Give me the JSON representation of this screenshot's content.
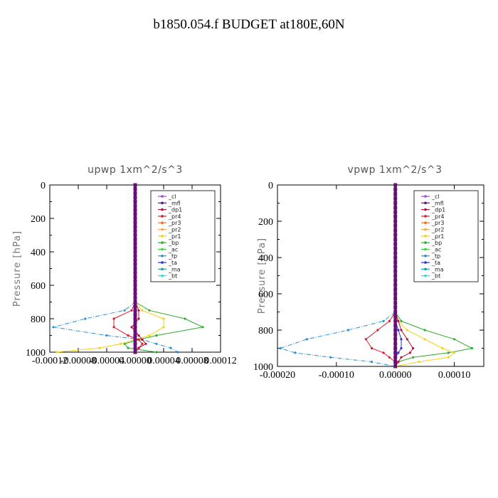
{
  "title": "b1850.054.f  BUDGET at180E,60N",
  "legend_labels": [
    "_cl",
    "_mfl",
    "_dp1",
    "_pr4",
    "_pr3",
    "_pr2",
    "_pr1",
    "_bp",
    "_ac",
    "_tp",
    "_ta",
    "_ma",
    "_bt"
  ],
  "colors": {
    "_cl": "#9b4fc7",
    "_mfl": "#6a0d7a",
    "_dp1": "#b3123a",
    "_pr4": "#d91c2b",
    "_pr3": "#ff6a1a",
    "_pr2": "#ffa64d",
    "_pr1": "#f2d316",
    "_bp": "#2eaa2e",
    "_ac": "#40d040",
    "_tp": "#2b8fd6",
    "_ta": "#2b2bd0",
    "_ma": "#1aa0a0",
    "_bt": "#20e0e0"
  },
  "chart_data": [
    {
      "type": "line",
      "title": "upwp   1xm^2/s^3",
      "ylabel": "Pressure  [hPa]",
      "xlim": [
        -0.00012,
        0.00012
      ],
      "ylim": [
        1000,
        0
      ],
      "xticks": [
        "-0.00012",
        "-0.00008",
        "-0.00004",
        "0.00000",
        "0.00004",
        "0.00008",
        "0.00012"
      ],
      "yticks": [
        "0",
        "200",
        "400",
        "600",
        "800",
        "1000"
      ],
      "xtick_values": [
        -0.00012,
        -8e-05,
        -4e-05,
        0,
        4e-05,
        8e-05,
        0.00012
      ],
      "ytick_values": [
        0,
        200,
        400,
        600,
        800,
        1000
      ],
      "levels": [
        700,
        750,
        800,
        850,
        900,
        925,
        950,
        975,
        1000
      ],
      "series": [
        {
          "name": "_tp",
          "values": [
            0,
            -1.5e-05,
            -7e-05,
            -0.000115,
            -4e-05,
            1e-05,
            3e-05,
            5e-05,
            6e-05
          ]
        },
        {
          "name": "_bp",
          "values": [
            0,
            2e-05,
            7e-05,
            9.5e-05,
            3e-05,
            5e-06,
            -1.5e-05,
            -1e-05,
            3e-05
          ]
        },
        {
          "name": "_pr1",
          "values": [
            0,
            1e-05,
            4e-05,
            4e-05,
            2e-05,
            0,
            -2e-05,
            -5e-05,
            -0.00011
          ]
        },
        {
          "name": "_pr4",
          "values": [
            0,
            -5e-06,
            -3e-05,
            -3e-05,
            -1e-05,
            5e-06,
            1e-05,
            5e-06,
            0
          ]
        },
        {
          "name": "_dp1",
          "values": [
            0,
            5e-06,
            5e-06,
            -5e-06,
            5e-06,
            1e-05,
            1.5e-05,
            5e-06,
            0
          ]
        },
        {
          "name": "_mfl",
          "values": [
            0,
            0,
            0,
            0,
            0,
            0,
            0,
            0,
            0
          ]
        }
      ]
    },
    {
      "type": "line",
      "title": "vpwp   1xm^2/s^3",
      "ylabel": "Pressure  [hPa]",
      "xlim": [
        -0.0002,
        0.00015
      ],
      "ylim": [
        1000,
        0
      ],
      "xticks": [
        "-0.00020",
        "-0.00010",
        "0.00000",
        "0.00010"
      ],
      "yticks": [
        "0",
        "200",
        "400",
        "600",
        "800",
        "1000"
      ],
      "xtick_values": [
        -0.0002,
        -0.0001,
        0,
        0.0001
      ],
      "ytick_values": [
        0,
        200,
        400,
        600,
        800,
        1000
      ],
      "levels": [
        700,
        750,
        800,
        850,
        900,
        925,
        950,
        975,
        1000
      ],
      "series": [
        {
          "name": "_tp",
          "values": [
            0,
            -2e-05,
            -8e-05,
            -0.00015,
            -0.000195,
            -0.00017,
            -0.00011,
            -4e-05,
            0
          ]
        },
        {
          "name": "_bp",
          "values": [
            0,
            1e-05,
            5e-05,
            0.0001,
            0.00013,
            9e-05,
            3e-05,
            5e-06,
            0
          ]
        },
        {
          "name": "_pr1",
          "values": [
            0,
            5e-06,
            2e-05,
            5e-05,
            8e-05,
            0.0001,
            9e-05,
            4e-05,
            0
          ]
        },
        {
          "name": "_pr4",
          "values": [
            0,
            -1e-05,
            -3e-05,
            -5e-05,
            -4e-05,
            -2e-05,
            -1e-05,
            0,
            0
          ]
        },
        {
          "name": "_dp1",
          "values": [
            0,
            5e-06,
            1e-05,
            2e-05,
            3e-05,
            2.5e-05,
            1e-05,
            5e-06,
            0
          ]
        },
        {
          "name": "_ta",
          "values": [
            0,
            0,
            5e-06,
            1e-05,
            1e-05,
            5e-06,
            0,
            0,
            0
          ]
        },
        {
          "name": "_mfl",
          "values": [
            0,
            0,
            0,
            0,
            0,
            0,
            0,
            0,
            0
          ]
        }
      ]
    }
  ]
}
